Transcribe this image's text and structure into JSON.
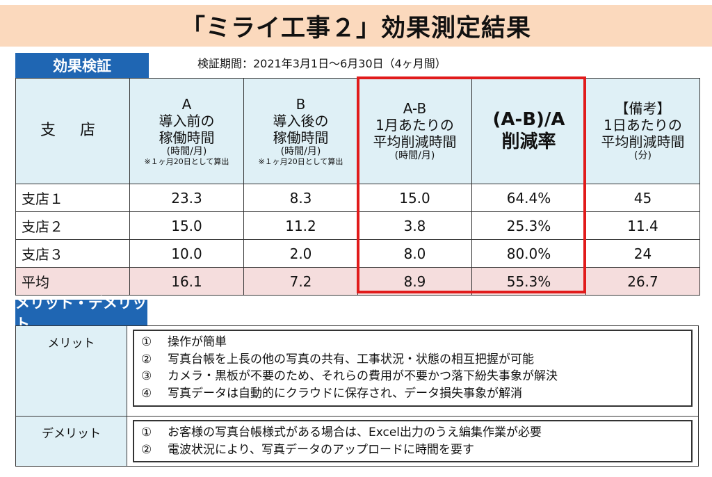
{
  "title": "「ミライ工事２」効果測定結果",
  "effect_section": {
    "label": "効果検証",
    "period": "検証期間：2021年3月1日～6月30日（4ヶ月間）"
  },
  "table": {
    "headers": {
      "branch": "支 店",
      "a": {
        "l1": "A",
        "l2": "導入前の",
        "l3": "稼働時間",
        "l4": "(時間/月)",
        "l5": "※１ヶ月20日として算出"
      },
      "b": {
        "l1": "B",
        "l2": "導入後の",
        "l3": "稼働時間",
        "l4": "(時間/月)",
        "l5": "※１ヶ月20日として算出"
      },
      "ab": {
        "l1": "A-B",
        "l2": "1月あたりの",
        "l3": "平均削減時間",
        "l4": "(時間/月)"
      },
      "rate": {
        "l1": "(A-B)/A",
        "l2": "削減率"
      },
      "note": {
        "l1": "【備考】",
        "l2": "1日あたりの",
        "l3": "平均削減時間",
        "l4": "(分)"
      }
    },
    "rows": [
      {
        "branch": "支店１",
        "a": "23.3",
        "b": "8.3",
        "ab": "15.0",
        "rate": "64.4%",
        "note": "45"
      },
      {
        "branch": "支店２",
        "a": "15.0",
        "b": "11.2",
        "ab": "3.8",
        "rate": "25.3%",
        "note": "11.4"
      },
      {
        "branch": "支店３",
        "a": "10.0",
        "b": "2.0",
        "ab": "8.0",
        "rate": "80.0%",
        "note": "24"
      },
      {
        "branch": "平均",
        "a": "16.1",
        "b": "7.2",
        "ab": "8.9",
        "rate": "55.3%",
        "note": "26.7"
      }
    ]
  },
  "merit_section": {
    "label": "メリット・デメリット",
    "merit_label": "メリット",
    "merits": [
      {
        "num": "①",
        "text": "操作が簡単"
      },
      {
        "num": "②",
        "text": "写真台帳を上長の他の写真の共有、工事状況・状態の相互把握が可能"
      },
      {
        "num": "③",
        "text": "カメラ・黒板が不要のため、それらの費用が不要かつ落下紛失事象が解決"
      },
      {
        "num": "④",
        "text": "写真データは自動的にクラウドに保存され、データ損失事象が解消"
      }
    ],
    "demerit_label": "デメリット",
    "demerits": [
      {
        "num": "①",
        "text": "お客様の写真台帳様式がある場合は、Excel出力のうえ編集作業が必要"
      },
      {
        "num": "②",
        "text": "電波状況により、写真データのアップロードに時間を要す"
      }
    ]
  },
  "colors": {
    "title_bg": "#fbd9bd",
    "section_label_bg": "#1f66b3",
    "header_bg": "#dff0f6",
    "average_row_bg": "#f5dddd",
    "highlight_border": "#e11b1b"
  }
}
